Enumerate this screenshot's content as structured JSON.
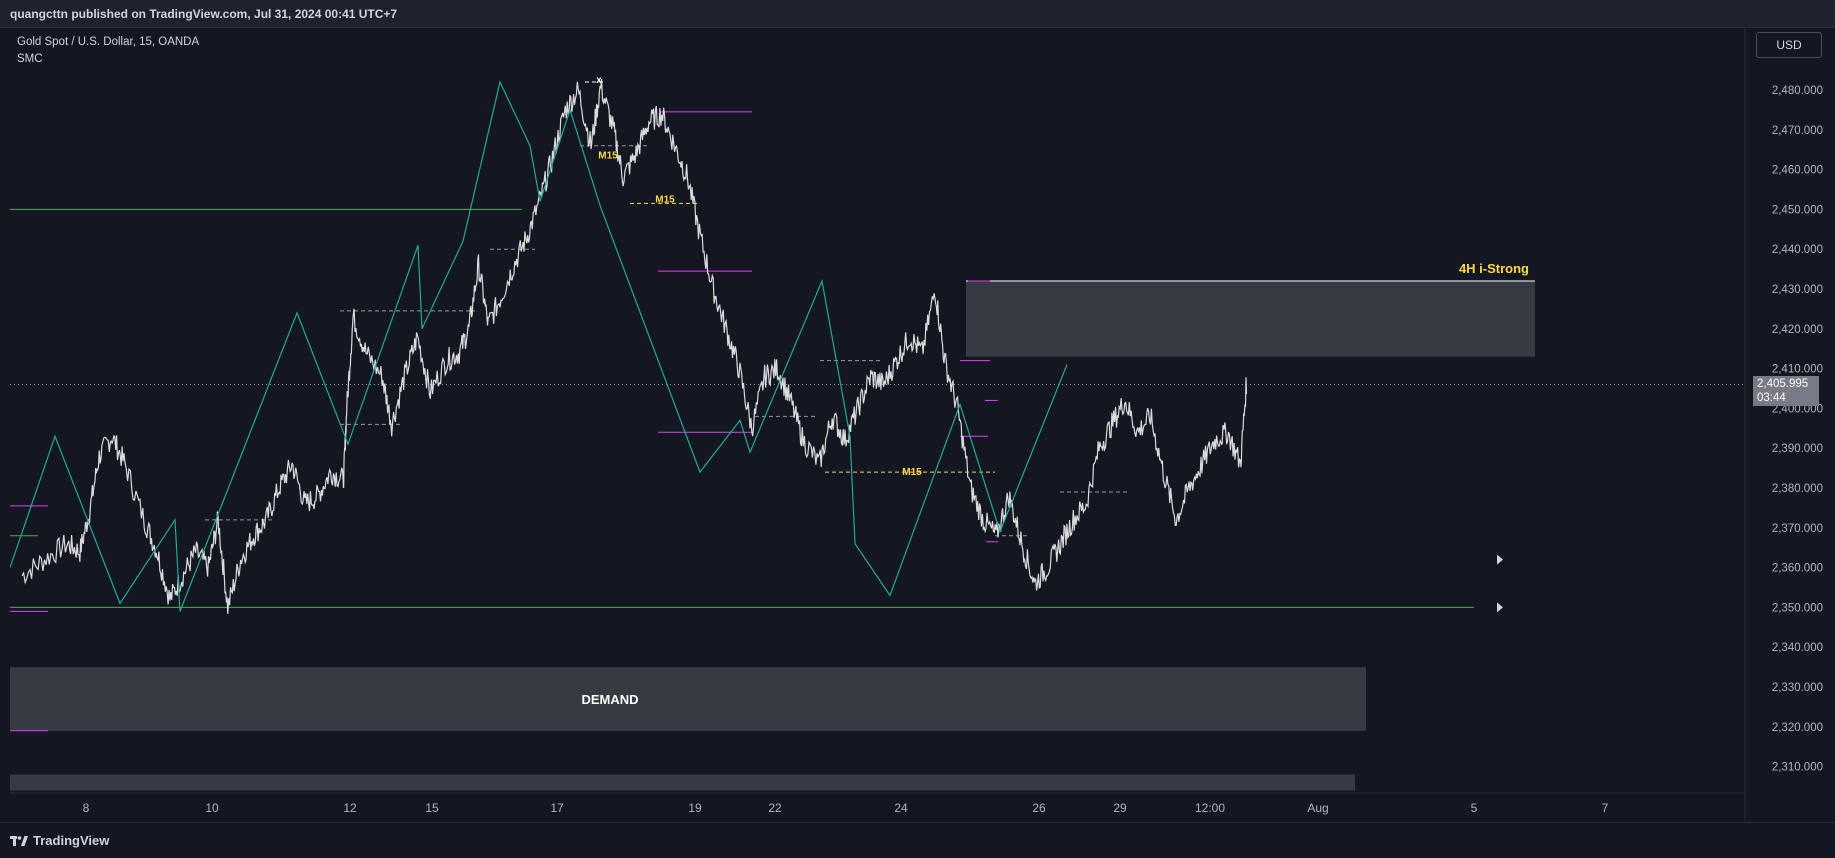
{
  "header": {
    "published": "quangcttn published on TradingView.com, Jul 31, 2024 00:41 UTC+7"
  },
  "legend": {
    "symbol": "Gold Spot / U.S. Dollar, 15, OANDA",
    "indicator": "SMC"
  },
  "currency_button": "USD",
  "last_price": {
    "value": "2,405.995",
    "countdown": "03:44"
  },
  "footer": {
    "brand": "TradingView"
  },
  "colors": {
    "background": "#131722",
    "candles": "#e6e6e6",
    "zigzag": "#26a69a",
    "swing_line": "#e040fb",
    "support_line": "#4caf50",
    "zone_fill": "#3b3e47",
    "annotation": "#ffd740"
  },
  "chart_data": {
    "type": "line",
    "title": "Gold Spot / U.S. Dollar, 15, OANDA",
    "ylim": [
      2300,
      2487
    ],
    "y_ticks": [
      "2,480.000",
      "2,470.000",
      "2,460.000",
      "2,450.000",
      "2,440.000",
      "2,430.000",
      "2,420.000",
      "2,410.000",
      "2,400.000",
      "2,390.000",
      "2,380.000",
      "2,370.000",
      "2,360.000",
      "2,350.000",
      "2,340.000",
      "2,330.000",
      "2,320.000",
      "2,310.000"
    ],
    "x_ticks": [
      "8",
      "10",
      "12",
      "15",
      "17",
      "19",
      "22",
      "24",
      "26",
      "29",
      "12:00",
      "Aug",
      "5",
      "7"
    ],
    "price_path": [
      [
        0,
        2358
      ],
      [
        0.35,
        2362
      ],
      [
        0.7,
        2366
      ],
      [
        0.9,
        2364
      ],
      [
        1.05,
        2374
      ],
      [
        1.2,
        2388
      ],
      [
        1.4,
        2393
      ],
      [
        1.6,
        2386
      ],
      [
        1.9,
        2372
      ],
      [
        2.1,
        2364
      ],
      [
        2.3,
        2352
      ],
      [
        2.5,
        2358
      ],
      [
        2.7,
        2364
      ],
      [
        2.9,
        2360
      ],
      [
        3.05,
        2372
      ],
      [
        3.2,
        2350
      ],
      [
        3.4,
        2362
      ],
      [
        3.6,
        2368
      ],
      [
        3.8,
        2372
      ],
      [
        4.0,
        2380
      ],
      [
        4.2,
        2386
      ],
      [
        4.4,
        2376
      ],
      [
        4.6,
        2378
      ],
      [
        4.8,
        2384
      ],
      [
        5.0,
        2382
      ],
      [
        5.05,
        2400
      ],
      [
        5.15,
        2423
      ],
      [
        5.35,
        2414
      ],
      [
        5.6,
        2408
      ],
      [
        5.75,
        2396
      ],
      [
        5.95,
        2408
      ],
      [
        6.15,
        2418
      ],
      [
        6.35,
        2404
      ],
      [
        6.6,
        2412
      ],
      [
        6.8,
        2414
      ],
      [
        6.95,
        2420
      ],
      [
        7.1,
        2436
      ],
      [
        7.25,
        2421
      ],
      [
        7.45,
        2428
      ],
      [
        7.65,
        2436
      ],
      [
        7.85,
        2443
      ],
      [
        8.05,
        2452
      ],
      [
        8.25,
        2463
      ],
      [
        8.45,
        2475
      ],
      [
        8.65,
        2480
      ],
      [
        8.85,
        2466
      ],
      [
        9.0,
        2481
      ],
      [
        9.2,
        2470
      ],
      [
        9.35,
        2458
      ],
      [
        9.55,
        2464
      ],
      [
        9.75,
        2472
      ],
      [
        9.95,
        2474
      ],
      [
        10.15,
        2466
      ],
      [
        10.35,
        2458
      ],
      [
        10.55,
        2443
      ],
      [
        10.75,
        2430
      ],
      [
        10.95,
        2420
      ],
      [
        11.15,
        2410
      ],
      [
        11.35,
        2395
      ],
      [
        11.55,
        2408
      ],
      [
        11.75,
        2410
      ],
      [
        11.95,
        2402
      ],
      [
        12.15,
        2392
      ],
      [
        12.4,
        2386
      ],
      [
        12.6,
        2398
      ],
      [
        12.8,
        2392
      ],
      [
        13.0,
        2400
      ],
      [
        13.2,
        2408
      ],
      [
        13.4,
        2406
      ],
      [
        13.6,
        2412
      ],
      [
        13.8,
        2418
      ],
      [
        14.0,
        2414
      ],
      [
        14.2,
        2430
      ],
      [
        14.35,
        2412
      ],
      [
        14.55,
        2400
      ],
      [
        14.75,
        2380
      ],
      [
        14.95,
        2372
      ],
      [
        15.15,
        2368
      ],
      [
        15.35,
        2378
      ],
      [
        15.55,
        2366
      ],
      [
        15.75,
        2356
      ],
      [
        15.95,
        2360
      ],
      [
        16.15,
        2366
      ],
      [
        16.35,
        2372
      ],
      [
        16.55,
        2376
      ],
      [
        16.75,
        2390
      ],
      [
        16.95,
        2396
      ],
      [
        17.15,
        2402
      ],
      [
        17.35,
        2394
      ],
      [
        17.55,
        2398
      ],
      [
        17.75,
        2384
      ],
      [
        17.95,
        2372
      ],
      [
        18.15,
        2380
      ],
      [
        18.35,
        2386
      ],
      [
        18.55,
        2392
      ],
      [
        18.75,
        2394
      ],
      [
        18.95,
        2386
      ],
      [
        19.05,
        2408
      ]
    ],
    "zones": [
      {
        "label": "4H i-Strong",
        "top": 2432,
        "bottom": 2413
      },
      {
        "label": "DEMAND",
        "top": 2335,
        "bottom": 2319
      },
      {
        "label": "",
        "top": 2308,
        "bottom": 2304
      }
    ],
    "annotations": [
      "M15",
      "M15",
      "M15",
      "x"
    ],
    "last_price": 2405.995
  }
}
